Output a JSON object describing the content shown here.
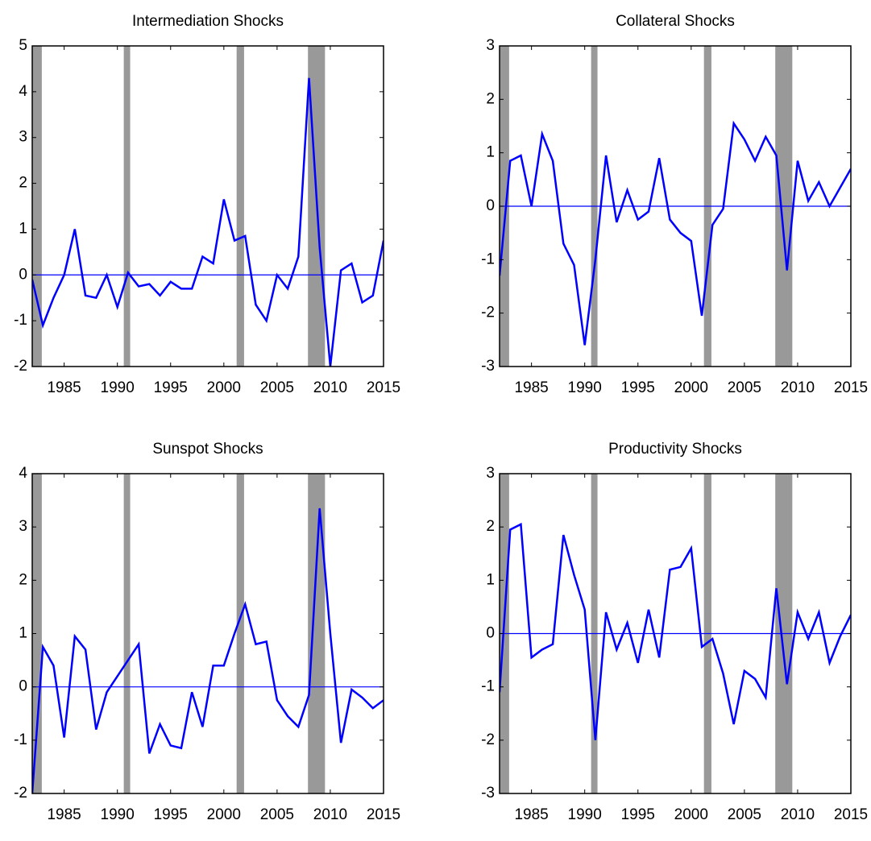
{
  "chart_data": [
    {
      "type": "line",
      "title": "Intermediation Shocks",
      "x": [
        1982,
        1983,
        1984,
        1985,
        1986,
        1987,
        1988,
        1989,
        1990,
        1991,
        1992,
        1993,
        1994,
        1995,
        1996,
        1997,
        1998,
        1999,
        2000,
        2001,
        2002,
        2003,
        2004,
        2005,
        2006,
        2007,
        2008,
        2009,
        2010,
        2011,
        2012,
        2013,
        2014,
        2015
      ],
      "series": [
        {
          "color": "#0000ff",
          "values": [
            -0.1,
            -1.1,
            -0.5,
            0.0,
            1.0,
            -0.45,
            -0.5,
            0.0,
            -0.7,
            0.05,
            -0.25,
            -0.2,
            -0.45,
            -0.15,
            -0.3,
            -0.3,
            0.4,
            0.25,
            1.65,
            0.75,
            0.85,
            -0.65,
            -1.0,
            0.0,
            -0.3,
            0.4,
            4.3,
            0.6,
            -2.0,
            0.1,
            0.25,
            -0.6,
            -0.45,
            0.75
          ]
        }
      ],
      "xlim": [
        1982,
        2015
      ],
      "xticks": [
        1985,
        1990,
        1995,
        2000,
        2005,
        2010,
        2015
      ],
      "ylim": [
        -2,
        5
      ],
      "yticks": [
        -2,
        -1,
        0,
        1,
        2,
        3,
        4,
        5
      ],
      "hline": 0,
      "recessions": [
        [
          1981.5,
          1982.9
        ],
        [
          1990.6,
          1991.2
        ],
        [
          2001.2,
          2001.9
        ],
        [
          2007.9,
          2009.5
        ]
      ],
      "recession_color": "#999999"
    },
    {
      "type": "line",
      "title": "Collateral Shocks",
      "x": [
        1982,
        1983,
        1984,
        1985,
        1986,
        1987,
        1988,
        1989,
        1990,
        1991,
        1992,
        1993,
        1994,
        1995,
        1996,
        1997,
        1998,
        1999,
        2000,
        2001,
        2002,
        2003,
        2004,
        2005,
        2006,
        2007,
        2008,
        2009,
        2010,
        2011,
        2012,
        2013,
        2014,
        2015
      ],
      "series": [
        {
          "color": "#0000ff",
          "values": [
            -1.3,
            0.85,
            0.95,
            0.0,
            1.35,
            0.85,
            -0.7,
            -1.1,
            -2.6,
            -1.0,
            0.95,
            -0.3,
            0.3,
            -0.25,
            -0.1,
            0.9,
            -0.25,
            -0.5,
            -0.65,
            -2.05,
            -0.35,
            -0.05,
            1.55,
            1.25,
            0.85,
            1.3,
            0.95,
            -1.2,
            0.85,
            0.1,
            0.45,
            0.0,
            0.35,
            0.7
          ]
        }
      ],
      "xlim": [
        1982,
        2015
      ],
      "xticks": [
        1985,
        1990,
        1995,
        2000,
        2005,
        2010,
        2015
      ],
      "ylim": [
        -3,
        3
      ],
      "yticks": [
        -3,
        -2,
        -1,
        0,
        1,
        2,
        3
      ],
      "hline": 0,
      "recessions": [
        [
          1981.5,
          1982.9
        ],
        [
          1990.6,
          1991.2
        ],
        [
          2001.2,
          2001.9
        ],
        [
          2007.9,
          2009.5
        ]
      ],
      "recession_color": "#999999"
    },
    {
      "type": "line",
      "title": "Sunspot Shocks",
      "x": [
        1982,
        1983,
        1984,
        1985,
        1986,
        1987,
        1988,
        1989,
        1990,
        1991,
        1992,
        1993,
        1994,
        1995,
        1996,
        1997,
        1998,
        1999,
        2000,
        2001,
        2002,
        2003,
        2004,
        2005,
        2006,
        2007,
        2008,
        2009,
        2010,
        2011,
        2012,
        2013,
        2014,
        2015
      ],
      "series": [
        {
          "color": "#0000ff",
          "values": [
            -2.0,
            0.75,
            0.4,
            -0.95,
            0.95,
            0.7,
            -0.8,
            -0.1,
            0.2,
            0.5,
            0.8,
            -1.25,
            -0.7,
            -1.1,
            -1.15,
            -0.1,
            -0.75,
            0.4,
            0.4,
            1.0,
            1.55,
            0.8,
            0.85,
            -0.25,
            -0.55,
            -0.75,
            -0.15,
            3.35,
            1.0,
            -1.05,
            -0.05,
            -0.2,
            -0.4,
            -0.25
          ]
        }
      ],
      "xlim": [
        1982,
        2015
      ],
      "xticks": [
        1985,
        1990,
        1995,
        2000,
        2005,
        2010,
        2015
      ],
      "ylim": [
        -2,
        4
      ],
      "yticks": [
        -2,
        -1,
        0,
        1,
        2,
        3,
        4
      ],
      "hline": 0,
      "recessions": [
        [
          1981.5,
          1982.9
        ],
        [
          1990.6,
          1991.2
        ],
        [
          2001.2,
          2001.9
        ],
        [
          2007.9,
          2009.5
        ]
      ],
      "recession_color": "#999999"
    },
    {
      "type": "line",
      "title": "Productivity Shocks",
      "x": [
        1982,
        1983,
        1984,
        1985,
        1986,
        1987,
        1988,
        1989,
        1990,
        1991,
        1992,
        1993,
        1994,
        1995,
        1996,
        1997,
        1998,
        1999,
        2000,
        2001,
        2002,
        2003,
        2004,
        2005,
        2006,
        2007,
        2008,
        2009,
        2010,
        2011,
        2012,
        2013,
        2014,
        2015
      ],
      "series": [
        {
          "color": "#0000ff",
          "values": [
            -1.1,
            1.95,
            2.05,
            -0.45,
            -0.3,
            -0.2,
            1.85,
            1.1,
            0.45,
            -2.0,
            0.4,
            -0.3,
            0.2,
            -0.55,
            0.45,
            -0.45,
            1.2,
            1.25,
            1.6,
            -0.25,
            -0.1,
            -0.75,
            -1.7,
            -0.7,
            -0.85,
            -1.2,
            0.85,
            -0.95,
            0.4,
            -0.1,
            0.4,
            -0.55,
            -0.05,
            0.35
          ]
        }
      ],
      "xlim": [
        1982,
        2015
      ],
      "xticks": [
        1985,
        1990,
        1995,
        2000,
        2005,
        2010,
        2015
      ],
      "ylim": [
        -3,
        3
      ],
      "yticks": [
        -3,
        -2,
        -1,
        0,
        1,
        2,
        3
      ],
      "hline": 0,
      "recessions": [
        [
          1981.5,
          1982.9
        ],
        [
          1990.6,
          1991.2
        ],
        [
          2001.2,
          2001.9
        ],
        [
          2007.9,
          2009.5
        ]
      ],
      "recession_color": "#999999"
    }
  ]
}
